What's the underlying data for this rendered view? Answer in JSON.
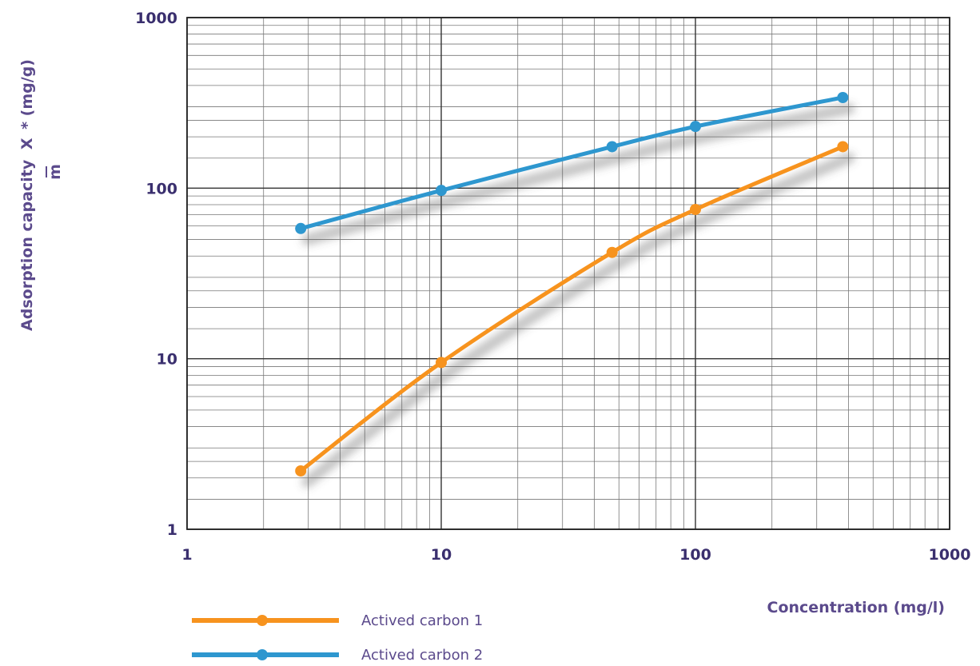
{
  "chart_data": {
    "type": "line",
    "xscale": "log",
    "yscale": "log",
    "xlim": [
      1,
      1000
    ],
    "ylim": [
      1,
      1000
    ],
    "grid": true,
    "legend_position": "bottom-left",
    "xlabel": "Concentration (mg/l)",
    "ylabel": "Adsorption capacity X/m * (mg/g)",
    "ylabel_parts": {
      "prefix": "Adsorption capacity",
      "numerator": "X",
      "denominator": "m",
      "suffix": "* (mg/g)"
    },
    "x_ticks": [
      "1",
      "10",
      "100",
      "1000"
    ],
    "y_ticks": [
      "1",
      "10",
      "100",
      "1000"
    ],
    "series": [
      {
        "name": "Actived carbon 1",
        "color": "#f7931e",
        "x": [
          2.8,
          10,
          47,
          100,
          380
        ],
        "y": [
          2.2,
          9.5,
          42,
          75,
          175
        ]
      },
      {
        "name": "Actived carbon 2",
        "color": "#2e97cf",
        "x": [
          2.8,
          10,
          47,
          100,
          380
        ],
        "y": [
          58,
          97,
          175,
          230,
          340
        ]
      }
    ]
  }
}
